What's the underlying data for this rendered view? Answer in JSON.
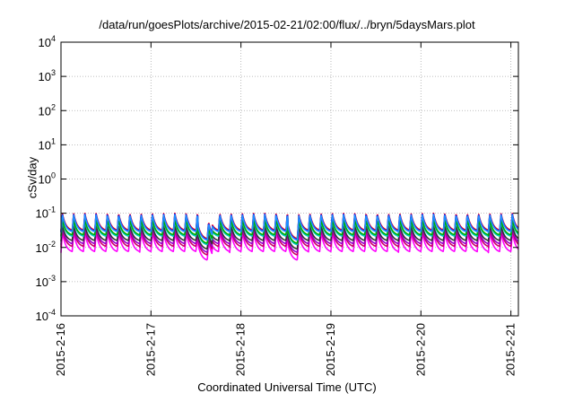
{
  "chart_data": {
    "type": "line",
    "title": "/data/run/goesPlots/archive/2015-02-21/02:00/flux/../bryn/5daysMars.plot",
    "xlabel": "Coordinated Universal Time (UTC)",
    "ylabel": "cSv/day",
    "yscale": "log",
    "ylim": [
      0.0001,
      10000
    ],
    "y_ticks": [
      {
        "base": "10",
        "exp": "-4"
      },
      {
        "base": "10",
        "exp": "-3"
      },
      {
        "base": "10",
        "exp": "-2"
      },
      {
        "base": "10",
        "exp": "-1"
      },
      {
        "base": "10",
        "exp": "0"
      },
      {
        "base": "10",
        "exp": "1"
      },
      {
        "base": "10",
        "exp": "2"
      },
      {
        "base": "10",
        "exp": "3"
      },
      {
        "base": "10",
        "exp": "4"
      }
    ],
    "x_ticks": [
      "2015-2-16",
      "2015-2-17",
      "2015-2-18",
      "2015-2-19",
      "2015-2-20",
      "2015-2-21"
    ],
    "xlim": [
      "2015-2-16",
      "2015-2-21 02:00"
    ],
    "grid": true,
    "legend": "none",
    "series": [
      {
        "color": "#ff00ff",
        "peak": 0.028,
        "trough": 0.007
      },
      {
        "color": "#cc0066",
        "peak": 0.035,
        "trough": 0.01
      },
      {
        "color": "#9900cc",
        "peak": 0.04,
        "trough": 0.012
      },
      {
        "color": "#333333",
        "peak": 0.045,
        "trough": 0.015
      },
      {
        "color": "#00cccc",
        "peak": 0.06,
        "trough": 0.02
      },
      {
        "color": "#00aa00",
        "peak": 0.065,
        "trough": 0.022
      },
      {
        "color": "#ff0000",
        "peak": 0.1,
        "trough": 0.03
      },
      {
        "color": "#0000ff",
        "peak": 0.095,
        "trough": 0.028
      },
      {
        "color": "#1e90ff",
        "peak": 0.09,
        "trough": 0.027
      }
    ],
    "cycles_per_day": 8
  }
}
